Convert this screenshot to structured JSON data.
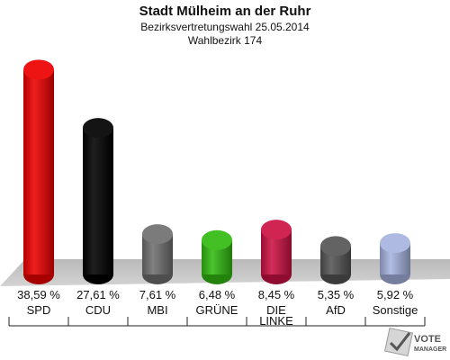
{
  "chart_data": {
    "type": "bar",
    "title": "Stadt Mülheim an der Ruhr",
    "subtitle": "Bezirksvertretungswahl 25.05.2014",
    "subtitle2": "Wahlbezirk 174",
    "categories": [
      "SPD",
      "CDU",
      "MBI",
      "GRÜNE",
      "DIE LINKE",
      "AfD",
      "Sonstige"
    ],
    "category_lines": [
      [
        "SPD"
      ],
      [
        "CDU"
      ],
      [
        "MBI"
      ],
      [
        "GRÜNE"
      ],
      [
        "DIE",
        "LINKE"
      ],
      [
        "AfD"
      ],
      [
        "Sonstige"
      ]
    ],
    "values": [
      38.59,
      27.61,
      7.61,
      6.48,
      8.45,
      5.35,
      5.92
    ],
    "value_labels": [
      "38,59 %",
      "27,61 %",
      "7,61 %",
      "6,48 %",
      "8,45 %",
      "5,35 %",
      "5,92 %"
    ],
    "colors": [
      "#ee0000",
      "#000000",
      "#707070",
      "#33bb11",
      "#cc1144",
      "#555555",
      "#a7b4e0"
    ],
    "ylim": [
      0,
      40
    ]
  },
  "logo": {
    "line1": "VOTE",
    "line2": "MANAGER"
  }
}
